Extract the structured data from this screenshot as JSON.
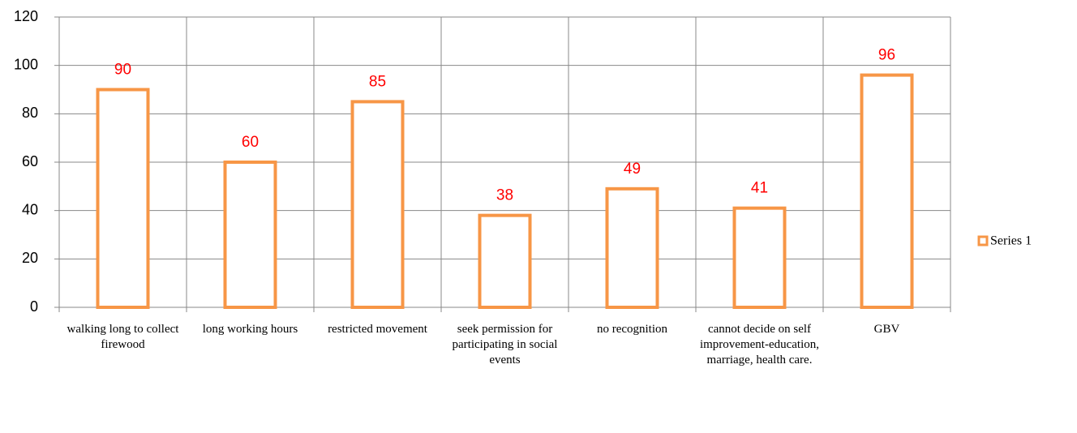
{
  "chart_data": {
    "type": "bar",
    "categories": [
      "walking long to collect firewood",
      "long working hours",
      "restricted movement",
      "seek permission for participating in social events",
      "no recognition",
      "cannot decide on self improvement-education, marriage, health care.",
      "GBV"
    ],
    "series": [
      {
        "name": "Series 1",
        "color": "#f79646",
        "values": [
          90,
          60,
          85,
          38,
          49,
          41,
          96
        ]
      }
    ],
    "value_label_color": "#ff0000",
    "ylim": [
      0,
      120
    ],
    "yticks": [
      0,
      20,
      40,
      60,
      80,
      100,
      120
    ],
    "grid": true,
    "legend": "right"
  }
}
